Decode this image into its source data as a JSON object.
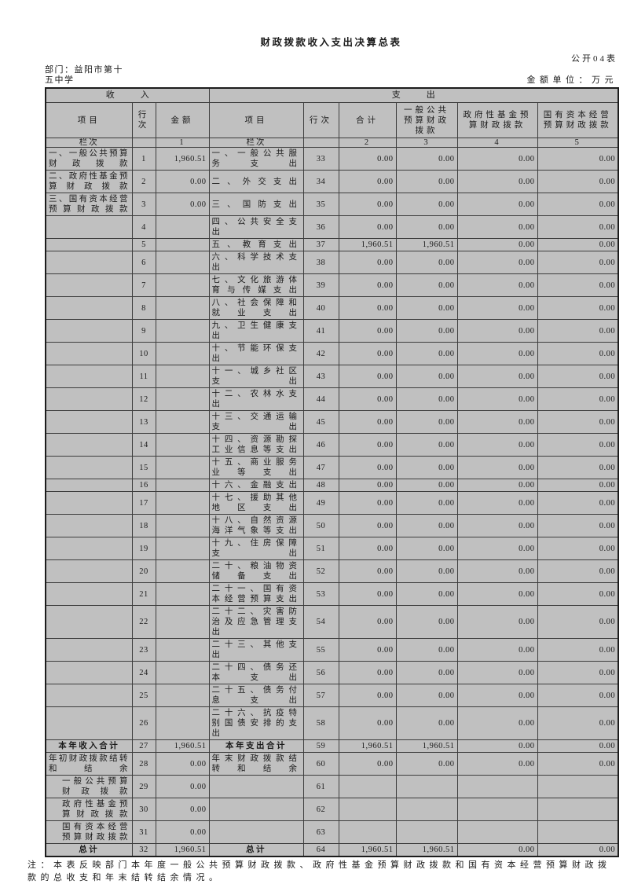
{
  "colors": {
    "cell_gray": "#c0c0c0"
  },
  "header": {
    "title": "财政拨款收入支出决算总表",
    "table_code": "公开04表",
    "department": "部门：益阳市第十五中学",
    "unit": "金额单位：万元"
  },
  "table": {
    "income_section": "收　　　入",
    "expense_section": "支　　　出",
    "col_headers": {
      "item_l": "项目",
      "line_no_l": "行次",
      "amount": "金额",
      "item_r": "项目",
      "line_no_r": "行次",
      "total": "合计",
      "general_budget": "一般公共预算财政拨款",
      "gov_fund": "政府性基金预算财政拨款",
      "state_capital": "国有资本经营预算财政拨款"
    },
    "lanci_label": "栏次",
    "col_nums": [
      "1",
      "2",
      "3",
      "4",
      "5"
    ],
    "rows": [
      {
        "cells": [
          "一、一般公共预算财政拨款",
          "1",
          "1,960.51",
          "一、一般公共服务支出",
          "33",
          "0.00",
          "0.00",
          "0.00",
          "0.00"
        ],
        "style": ""
      },
      {
        "cells": [
          "二、政府性基金预算财政拨款",
          "2",
          "0.00",
          "二、外交支出",
          "34",
          "0.00",
          "0.00",
          "0.00",
          "0.00"
        ],
        "style": ""
      },
      {
        "cells": [
          "三、国有资本经营预算财政拨款",
          "3",
          "0.00",
          "三、国防支出",
          "35",
          "0.00",
          "0.00",
          "0.00",
          "0.00"
        ],
        "style": ""
      },
      {
        "cells": [
          "",
          "4",
          "",
          "四、公共安全支出",
          "36",
          "0.00",
          "0.00",
          "0.00",
          "0.00"
        ],
        "style": ""
      },
      {
        "cells": [
          "",
          "5",
          "",
          "五、教育支出",
          "37",
          "1,960.51",
          "1,960.51",
          "0.00",
          "0.00"
        ],
        "style": ""
      },
      {
        "cells": [
          "",
          "6",
          "",
          "六、科学技术支出",
          "38",
          "0.00",
          "0.00",
          "0.00",
          "0.00"
        ],
        "style": ""
      },
      {
        "cells": [
          "",
          "7",
          "",
          "七、文化旅游体育与传媒支出",
          "39",
          "0.00",
          "0.00",
          "0.00",
          "0.00"
        ],
        "style": ""
      },
      {
        "cells": [
          "",
          "8",
          "",
          "八、社会保障和就业支出",
          "40",
          "0.00",
          "0.00",
          "0.00",
          "0.00"
        ],
        "style": ""
      },
      {
        "cells": [
          "",
          "9",
          "",
          "九、卫生健康支出",
          "41",
          "0.00",
          "0.00",
          "0.00",
          "0.00"
        ],
        "style": ""
      },
      {
        "cells": [
          "",
          "10",
          "",
          "十、节能环保支出",
          "42",
          "0.00",
          "0.00",
          "0.00",
          "0.00"
        ],
        "style": ""
      },
      {
        "cells": [
          "",
          "11",
          "",
          "十一、城乡社区支出",
          "43",
          "0.00",
          "0.00",
          "0.00",
          "0.00"
        ],
        "style": ""
      },
      {
        "cells": [
          "",
          "12",
          "",
          "十二、农林水支出",
          "44",
          "0.00",
          "0.00",
          "0.00",
          "0.00"
        ],
        "style": ""
      },
      {
        "cells": [
          "",
          "13",
          "",
          "十三、交通运输支出",
          "45",
          "0.00",
          "0.00",
          "0.00",
          "0.00"
        ],
        "style": ""
      },
      {
        "cells": [
          "",
          "14",
          "",
          "十四、资源勘探工业信息等支出",
          "46",
          "0.00",
          "0.00",
          "0.00",
          "0.00"
        ],
        "style": ""
      },
      {
        "cells": [
          "",
          "15",
          "",
          "十五、商业服务业等支出",
          "47",
          "0.00",
          "0.00",
          "0.00",
          "0.00"
        ],
        "style": ""
      },
      {
        "cells": [
          "",
          "16",
          "",
          "十六、金融支出",
          "48",
          "0.00",
          "0.00",
          "0.00",
          "0.00"
        ],
        "style": ""
      },
      {
        "cells": [
          "",
          "17",
          "",
          "十七、援助其他地区支出",
          "49",
          "0.00",
          "0.00",
          "0.00",
          "0.00"
        ],
        "style": ""
      },
      {
        "cells": [
          "",
          "18",
          "",
          "十八、自然资源海洋气象等支出",
          "50",
          "0.00",
          "0.00",
          "0.00",
          "0.00"
        ],
        "style": ""
      },
      {
        "cells": [
          "",
          "19",
          "",
          "十九、住房保障支出",
          "51",
          "0.00",
          "0.00",
          "0.00",
          "0.00"
        ],
        "style": ""
      },
      {
        "cells": [
          "",
          "20",
          "",
          "二十、粮油物资储备支出",
          "52",
          "0.00",
          "0.00",
          "0.00",
          "0.00"
        ],
        "style": ""
      },
      {
        "cells": [
          "",
          "21",
          "",
          "二十一、国有资本经营预算支出",
          "53",
          "0.00",
          "0.00",
          "0.00",
          "0.00"
        ],
        "style": ""
      },
      {
        "cells": [
          "",
          "22",
          "",
          "二十二、灾害防治及应急管理支出",
          "54",
          "0.00",
          "0.00",
          "0.00",
          "0.00"
        ],
        "style": ""
      },
      {
        "cells": [
          "",
          "23",
          "",
          "二十三、其他支出",
          "55",
          "0.00",
          "0.00",
          "0.00",
          "0.00"
        ],
        "style": ""
      },
      {
        "cells": [
          "",
          "24",
          "",
          "二十四、债务还本支出",
          "56",
          "0.00",
          "0.00",
          "0.00",
          "0.00"
        ],
        "style": ""
      },
      {
        "cells": [
          "",
          "25",
          "",
          "二十五、债务付息支出",
          "57",
          "0.00",
          "0.00",
          "0.00",
          "0.00"
        ],
        "style": ""
      },
      {
        "cells": [
          "",
          "26",
          "",
          "二十六、抗疫特别国债安排的支出",
          "58",
          "0.00",
          "0.00",
          "0.00",
          "0.00"
        ],
        "style": ""
      },
      {
        "cells": [
          "本年收入合计",
          "27",
          "1,960.51",
          "本年支出合计",
          "59",
          "1,960.51",
          "1,960.51",
          "0.00",
          "0.00"
        ],
        "style": "total"
      },
      {
        "cells": [
          "年初财政拨款结转和结余",
          "28",
          "0.00",
          "年末财政拨款结转和结余",
          "60",
          "0.00",
          "0.00",
          "0.00",
          "0.00"
        ],
        "style": ""
      },
      {
        "cells": [
          "一般公共预算财政拨款",
          "29",
          "0.00",
          "",
          "61",
          "",
          "",
          "",
          ""
        ],
        "style": "indent"
      },
      {
        "cells": [
          "政府性基金预算财政拨款",
          "30",
          "0.00",
          "",
          "62",
          "",
          "",
          "",
          ""
        ],
        "style": "indent"
      },
      {
        "cells": [
          "国有资本经营预算财政拨款",
          "31",
          "0.00",
          "",
          "63",
          "",
          "",
          "",
          ""
        ],
        "style": "indent"
      },
      {
        "cells": [
          "总计",
          "32",
          "1,960.51",
          "总计",
          "64",
          "1,960.51",
          "1,960.51",
          "0.00",
          "0.00"
        ],
        "style": "total"
      }
    ]
  },
  "note": "注：本表反映部门本年度一般公共预算财政拨款、政府性基金预算财政拨款和国有资本经营预算财政拨款的总收支和年末结转结余情况。"
}
